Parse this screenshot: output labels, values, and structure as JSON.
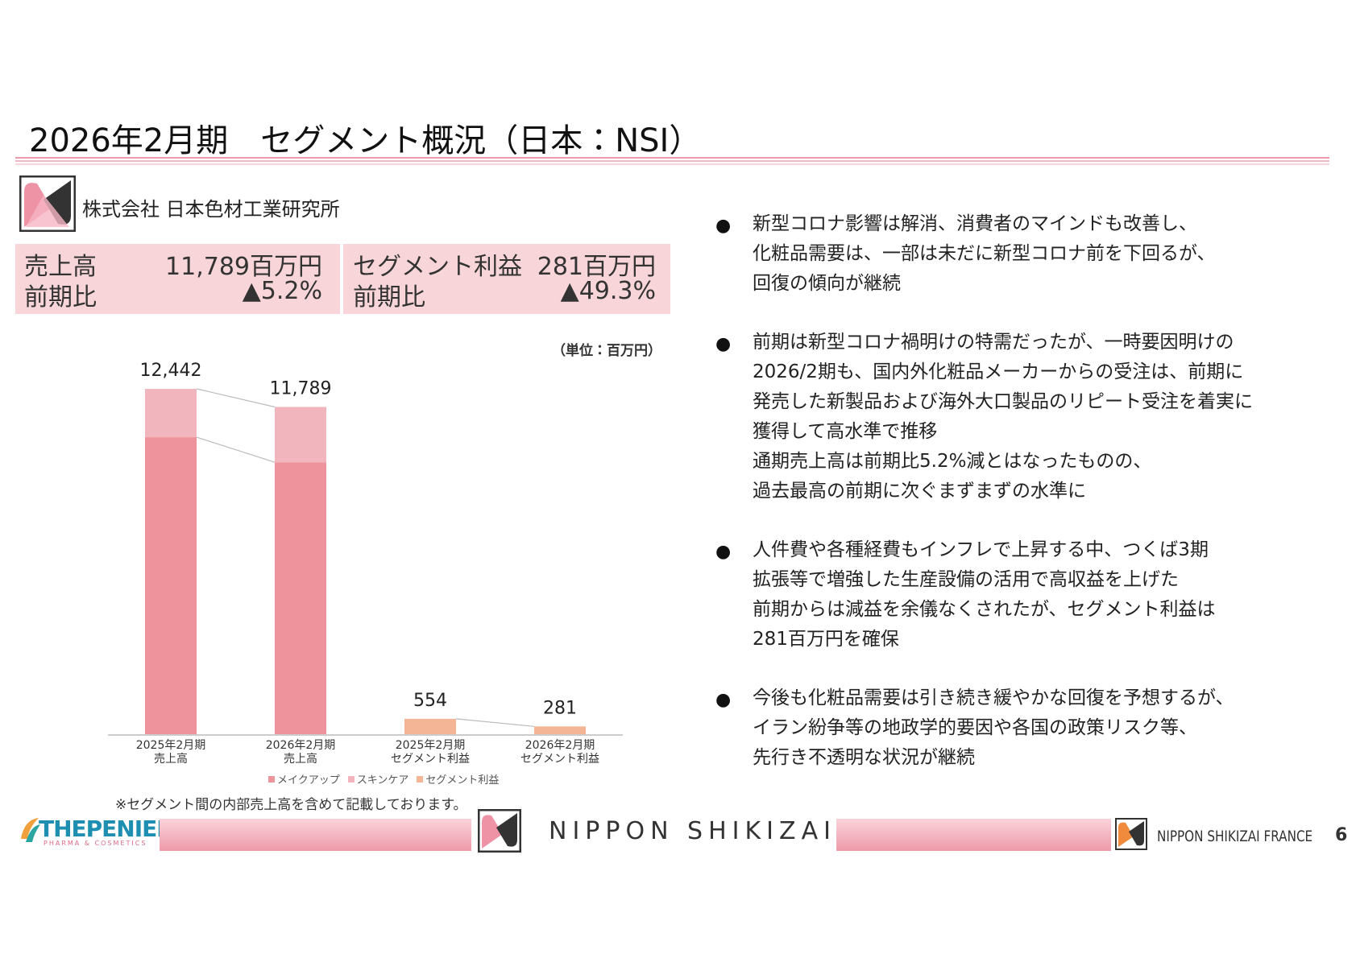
{
  "header": {
    "title": "2026年2月期　セグメント概況（日本：NSI）"
  },
  "company": {
    "name": "株式会社 日本色材工業研究所"
  },
  "kpi": {
    "sales_label": "売上高",
    "sales_value": "11,789百万円",
    "sales_yoy_label": "前期比",
    "sales_yoy": "▲5.2%",
    "profit_label": "セグメント利益",
    "profit_value": "281百万円",
    "profit_yoy_label": "前期比",
    "profit_yoy": "▲49.3%"
  },
  "chart_data": {
    "type": "bar",
    "stacked": true,
    "unit_label": "（単位：百万円）",
    "categories": [
      "2025年2月期\n売上高",
      "2026年2月期\n売上高",
      "2025年2月期\nセグメント利益",
      "2026年2月期\nセグメント利益"
    ],
    "series": [
      {
        "name": "メイクアップ",
        "color": "#ee939b",
        "values": [
          10700,
          9797,
          null,
          null
        ]
      },
      {
        "name": "スキンケア",
        "color": "#f1b5be",
        "values": [
          1742,
          1992,
          null,
          null
        ]
      },
      {
        "name": "セグメント利益",
        "color": "#f4b496",
        "values": [
          null,
          null,
          554,
          281
        ]
      }
    ],
    "totals": {
      "values": [
        12442,
        11789,
        554,
        281
      ],
      "value_labels": [
        "12,442",
        "11,789",
        "554",
        "281"
      ]
    },
    "note": "※セグメント間の内部売上高を含めて記載しております。"
  },
  "bullets": [
    [
      "新型コロナ影響は解消、消費者のマインドも改善し、",
      "化粧品需要は、一部は未だに新型コロナ前を下回るが、",
      "回復の傾向が継続"
    ],
    [
      "前期は新型コロナ禍明けの特需だったが、一時要因明けの",
      "2026/2期も、国内外化粧品メーカーからの受注は、前期に",
      "発売した新製品および海外大口製品のリピート受注を着実に",
      "獲得して高水準で推移",
      "通期売上高は前期比5.2%減とはなったものの、",
      "過去最高の前期に次ぐまずまずの水準に"
    ],
    [
      "人件費や各種経費もインフレで上昇する中、つくば3期",
      "拡張等で増強した生産設備の活用で高収益を上げた",
      "前期からは減益を余儀なくされたが、セグメント利益は",
      "281百万円を確保"
    ],
    [
      "今後も化粧品需要は引き続き緩やかな回復を予想するが、",
      "イラン紛争等の地政学的要因や各国の政策リスク等、",
      "先行き不透明な状況が継続"
    ]
  ],
  "footer": {
    "brand1": "THEPENIER",
    "brand1_sub": "PHARMA & COSMETICS",
    "brand2": "NIPPON SHIKIZAI",
    "brand3": "NIPPON SHIKIZAI FRANCE",
    "page": "6"
  }
}
